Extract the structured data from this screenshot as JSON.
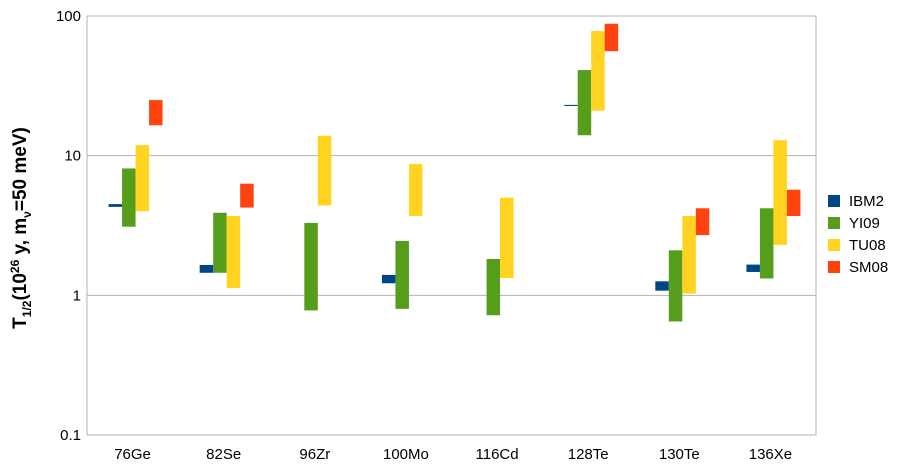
{
  "chart_data": {
    "type": "bar",
    "subtype": "floating-range-log",
    "ylabel": {
      "main": "T",
      "sub": "1/2",
      "open": "(10",
      "exp": "26",
      "mid": " y, m",
      "nu": "ν",
      "close": "=50 meV)"
    },
    "yscale": "log",
    "ylim": [
      0.1,
      100
    ],
    "yticks": [
      "0.1",
      "1",
      "10",
      "100"
    ],
    "ytick_values": [
      0.1,
      1,
      10,
      100
    ],
    "grid": true,
    "legend_position": "right",
    "categories": [
      "76Ge",
      "82Se",
      "96Zr",
      "100Mo",
      "116Cd",
      "128Te",
      "130Te",
      "136Xe"
    ],
    "series": [
      {
        "name": "IBM2",
        "color": "#004586",
        "ranges": [
          [
            4.3,
            4.5
          ],
          [
            1.45,
            1.65
          ],
          null,
          [
            1.22,
            1.4
          ],
          null,
          [
            22.7,
            23.1
          ],
          [
            1.08,
            1.26
          ],
          [
            1.47,
            1.66
          ]
        ]
      },
      {
        "name": "YI09",
        "color": "#579d1c",
        "ranges": [
          [
            3.1,
            8.1
          ],
          [
            1.45,
            3.9
          ],
          [
            0.78,
            3.3
          ],
          [
            0.8,
            2.45
          ],
          [
            0.72,
            1.82
          ],
          [
            14,
            41
          ],
          [
            0.65,
            2.1
          ],
          [
            1.32,
            4.2
          ]
        ]
      },
      {
        "name": "TU08",
        "color": "#ffd320",
        "ranges": [
          [
            4.0,
            11.9
          ],
          [
            1.13,
            3.7
          ],
          [
            4.4,
            13.9
          ],
          [
            3.7,
            8.7
          ],
          [
            1.33,
            5.0
          ],
          [
            21,
            78
          ],
          [
            1.03,
            3.7
          ],
          [
            2.3,
            12.9
          ]
        ]
      },
      {
        "name": "SM08",
        "color": "#ff420e",
        "ranges": [
          [
            16.5,
            25
          ],
          [
            4.25,
            6.3
          ],
          null,
          null,
          null,
          [
            56,
            88
          ],
          [
            2.7,
            4.2
          ],
          [
            3.7,
            5.7
          ]
        ]
      }
    ]
  }
}
